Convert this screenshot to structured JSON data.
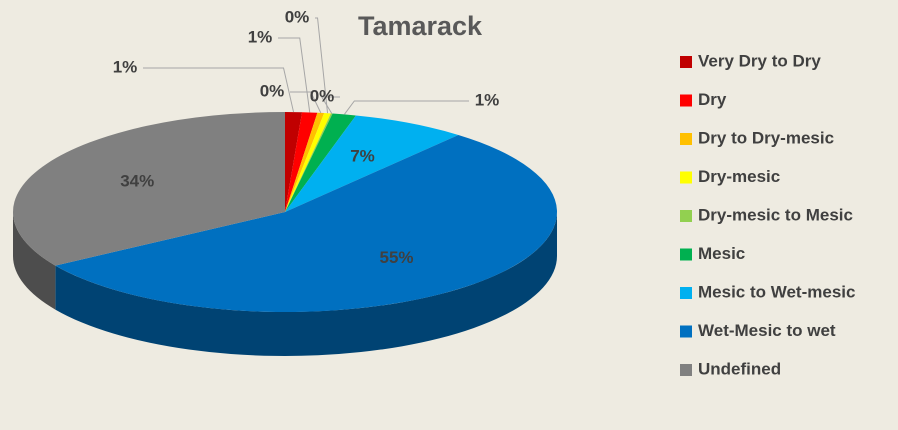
{
  "chart_data": {
    "type": "pie",
    "title": "Tamarack",
    "categories": [
      "Very Dry to Dry",
      "Dry",
      "Dry to Dry-mesic",
      "Dry-mesic",
      "Dry-mesic to Mesic",
      "Mesic",
      "Mesic to Wet-mesic",
      "Wet-Mesic to wet",
      "Undefined"
    ],
    "values": [
      1.0,
      0.9,
      0.4,
      0.4,
      0.1,
      1.4,
      6.8,
      55.0,
      34.0
    ],
    "value_labels": [
      "1%",
      "1%",
      "0%",
      "0%",
      "0%",
      "1%",
      "7%",
      "55%",
      "34%"
    ],
    "colors": [
      "#c00000",
      "#ff0000",
      "#ffc000",
      "#ffff00",
      "#92d050",
      "#00b050",
      "#00b0f0",
      "#0070c0",
      "#808080"
    ],
    "legend": "right"
  }
}
